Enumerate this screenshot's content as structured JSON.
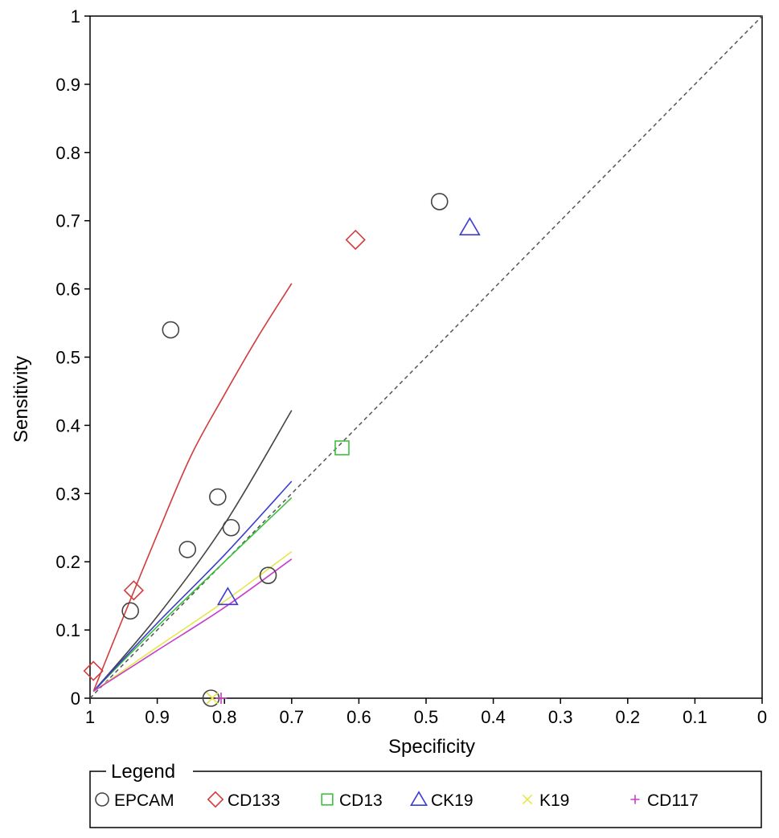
{
  "chart_data": {
    "type": "scatter",
    "title": "",
    "xlabel": "Specificity",
    "ylabel": "Sensitivity",
    "xlim": [
      1,
      0
    ],
    "ylim": [
      0,
      1
    ],
    "x_reversed": true,
    "grid": false,
    "x_ticks": [
      "1",
      "0.9",
      "0.8",
      "0.7",
      "0.6",
      "0.5",
      "0.4",
      "0.3",
      "0.2",
      "0.1",
      "0"
    ],
    "y_ticks": [
      "0",
      "0.1",
      "0.2",
      "0.3",
      "0.4",
      "0.5",
      "0.6",
      "0.7",
      "0.8",
      "0.9",
      "1"
    ],
    "reference_line": {
      "from": [
        1,
        0
      ],
      "to": [
        0,
        1
      ],
      "style": "dashed",
      "color": "#555555"
    },
    "legend": {
      "title": "Legend",
      "placement": "bottom"
    },
    "series": [
      {
        "name": "EPCAM",
        "marker": "circle",
        "color": "#444444",
        "points": [
          [
            0.88,
            0.54
          ],
          [
            0.94,
            0.128
          ],
          [
            0.855,
            0.218
          ],
          [
            0.81,
            0.295
          ],
          [
            0.79,
            0.25
          ],
          [
            0.82,
            0.0
          ],
          [
            0.735,
            0.18
          ],
          [
            0.48,
            0.728
          ]
        ],
        "curve": [
          [
            0.995,
            0.01
          ],
          [
            0.9,
            0.12
          ],
          [
            0.8,
            0.255
          ],
          [
            0.7,
            0.422
          ]
        ]
      },
      {
        "name": "CD133",
        "marker": "diamond",
        "color": "#d23c3c",
        "points": [
          [
            0.995,
            0.04
          ],
          [
            0.935,
            0.158
          ],
          [
            0.605,
            0.672
          ]
        ],
        "curve": [
          [
            0.995,
            0.01
          ],
          [
            0.95,
            0.12
          ],
          [
            0.9,
            0.24
          ],
          [
            0.85,
            0.355
          ],
          [
            0.8,
            0.445
          ],
          [
            0.75,
            0.53
          ],
          [
            0.7,
            0.608
          ]
        ]
      },
      {
        "name": "CD13",
        "marker": "square",
        "color": "#3cc23c",
        "points": [
          [
            0.625,
            0.367
          ]
        ],
        "curve": [
          [
            0.995,
            0.01
          ],
          [
            0.9,
            0.105
          ],
          [
            0.8,
            0.2
          ],
          [
            0.7,
            0.294
          ]
        ]
      },
      {
        "name": "CK19",
        "marker": "triangle",
        "color": "#3c3cd2",
        "points": [
          [
            0.795,
            0.148
          ],
          [
            0.435,
            0.69
          ]
        ],
        "curve": [
          [
            0.995,
            0.01
          ],
          [
            0.9,
            0.11
          ],
          [
            0.8,
            0.21
          ],
          [
            0.7,
            0.318
          ]
        ]
      },
      {
        "name": "K19",
        "marker": "x",
        "color": "#e6e64c",
        "points": [
          [
            0.818,
            0.0
          ]
        ],
        "curve": [
          [
            0.995,
            0.01
          ],
          [
            0.9,
            0.075
          ],
          [
            0.8,
            0.142
          ],
          [
            0.7,
            0.215
          ]
        ]
      },
      {
        "name": "CD117",
        "marker": "plus",
        "color": "#c83cc8",
        "points": [
          [
            0.805,
            0.0
          ]
        ],
        "curve": [
          [
            0.995,
            0.01
          ],
          [
            0.9,
            0.07
          ],
          [
            0.8,
            0.133
          ],
          [
            0.7,
            0.204
          ]
        ]
      }
    ]
  }
}
